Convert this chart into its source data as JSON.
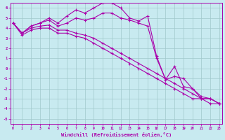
{
  "xlabel": "Windchill (Refroidissement éolien,°C)",
  "background_color": "#c8eaf0",
  "grid_color": "#a0c8cc",
  "line_color": "#aa00aa",
  "x_hours": [
    0,
    1,
    2,
    3,
    4,
    5,
    6,
    7,
    8,
    9,
    10,
    11,
    12,
    13,
    14,
    15,
    16,
    17,
    18,
    19,
    20,
    21,
    22,
    23
  ],
  "line1": [
    4.5,
    3.5,
    4.2,
    4.5,
    5.0,
    4.5,
    5.2,
    5.8,
    5.5,
    6.0,
    6.5,
    6.5,
    6.0,
    5.0,
    4.7,
    5.2,
    1.2,
    -1.1,
    0.2,
    -1.8,
    -2.0,
    -3.0,
    -3.5,
    -3.5
  ],
  "line2": [
    4.5,
    3.5,
    4.2,
    4.5,
    4.8,
    4.2,
    4.5,
    5.0,
    4.8,
    5.0,
    5.5,
    5.5,
    5.0,
    4.8,
    4.5,
    4.2,
    1.0,
    -1.1,
    -0.8,
    -1.0,
    -2.0,
    -2.8,
    -3.0,
    -3.5
  ],
  "line3": [
    4.5,
    3.5,
    4.0,
    4.2,
    4.3,
    3.8,
    3.8,
    3.5,
    3.3,
    3.0,
    2.5,
    2.0,
    1.5,
    1.0,
    0.5,
    0.0,
    -0.5,
    -1.0,
    -1.5,
    -2.0,
    -2.5,
    -3.0,
    -3.0,
    -3.5
  ],
  "line4": [
    4.5,
    3.3,
    3.8,
    4.0,
    4.0,
    3.5,
    3.5,
    3.2,
    3.0,
    2.5,
    2.0,
    1.5,
    1.0,
    0.5,
    0.0,
    -0.5,
    -1.0,
    -1.5,
    -2.0,
    -2.5,
    -3.0,
    -3.0,
    -3.0,
    -3.5
  ],
  "ylim": [
    -5.5,
    6.5
  ],
  "xlim": [
    -0.3,
    23.3
  ],
  "yticks": [
    -5,
    -4,
    -3,
    -2,
    -1,
    0,
    1,
    2,
    3,
    4,
    5,
    6
  ],
  "xticks": [
    0,
    1,
    2,
    3,
    4,
    5,
    6,
    7,
    8,
    9,
    10,
    11,
    12,
    13,
    14,
    15,
    16,
    17,
    18,
    19,
    20,
    21,
    22,
    23
  ]
}
